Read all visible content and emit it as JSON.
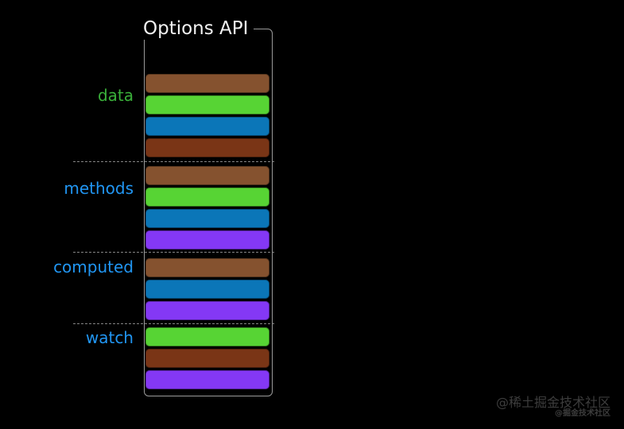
{
  "title": "Options API",
  "palette": {
    "brown_light": "#85522F",
    "green": "#57D434",
    "blue": "#0B76B8",
    "brown_dark": "#7A3516",
    "purple": "#8438F5",
    "label_green": "#3AB03A",
    "label_blue": "#2196F3",
    "bracket_line": "#9A9A9A",
    "dotted_line": "#848484",
    "title_text": "#F2F2F2",
    "watermark_text": "#3D3D3D",
    "background": "#000000"
  },
  "sections": [
    {
      "label": "data",
      "label_color": "label_green",
      "bars": [
        "brown_light",
        "green",
        "blue",
        "brown_dark"
      ]
    },
    {
      "label": "methods",
      "label_color": "label_blue",
      "bars": [
        "brown_light",
        "green",
        "blue",
        "purple"
      ]
    },
    {
      "label": "computed",
      "label_color": "label_blue",
      "bars": [
        "brown_light",
        "blue",
        "purple"
      ]
    },
    {
      "label": "watch",
      "label_color": "label_blue",
      "bars": [
        "green",
        "brown_dark",
        "purple"
      ]
    }
  ],
  "watermark": {
    "line1": "@稀土掘金技术社区",
    "line2": "@掘金技术社区"
  }
}
